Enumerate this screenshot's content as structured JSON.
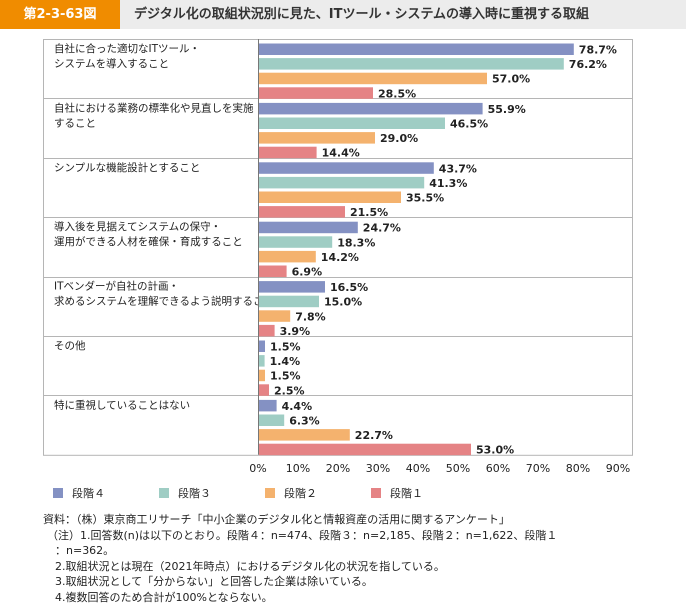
{
  "header": {
    "figure_label": "第2-3-63図",
    "title": "デジタル化の取組状況別に見た、ITツール・システムの導入時に重視する取組"
  },
  "colors": {
    "header_accent": "#f08c00",
    "stage4": "#8491c3",
    "stage3": "#9fcdc4",
    "stage2": "#f4b26e",
    "stage1": "#e58385"
  },
  "chart_data": {
    "type": "bar",
    "orientation": "horizontal",
    "categories": [
      [
        "自社に合った適切なITツール・",
        "システムを導入すること"
      ],
      [
        "自社における業務の標準化や見直しを実施",
        "すること"
      ],
      [
        "シンプルな機能設計とすること"
      ],
      [
        "導入後を見据えてシステムの保守・",
        "運用ができる人材を確保・育成すること"
      ],
      [
        "ITベンダーが自社の計画・",
        "求めるシステムを理解できるよう説明すること"
      ],
      [
        "その他"
      ],
      [
        "特に重視していることはない"
      ]
    ],
    "series": [
      {
        "name": "段階４",
        "values": [
          78.7,
          55.9,
          43.7,
          24.7,
          16.5,
          1.5,
          4.4
        ]
      },
      {
        "name": "段階３",
        "values": [
          76.2,
          46.5,
          41.3,
          18.3,
          15.0,
          1.4,
          6.3
        ]
      },
      {
        "name": "段階２",
        "values": [
          57.0,
          29.0,
          35.5,
          14.2,
          7.8,
          1.5,
          22.7
        ]
      },
      {
        "name": "段階１",
        "values": [
          28.5,
          14.4,
          21.5,
          6.9,
          3.9,
          2.5,
          53.0
        ]
      }
    ],
    "xlim": [
      0,
      90
    ],
    "xticks": [
      "0%",
      "10%",
      "20%",
      "30%",
      "40%",
      "50%",
      "60%",
      "70%",
      "80%",
      "90%"
    ],
    "value_suffix": "%",
    "legend_position": "bottom"
  },
  "notes": [
    "資料：（株）東京商工リサーチ「中小企業のデジタル化と情報資産の活用に関するアンケート」",
    "（注）1.回答数(n)は以下のとおり。段階４：n=474、段階３：n=2,185、段階２：n=1,622、段階１",
    "：n=362。",
    "2.取組状況とは現在（2021年時点）におけるデジタル化の状況を指している。",
    "3.取組状況として「分からない」と回答した企業は除いている。",
    "4.複数回答のため合計が100%とならない。"
  ]
}
